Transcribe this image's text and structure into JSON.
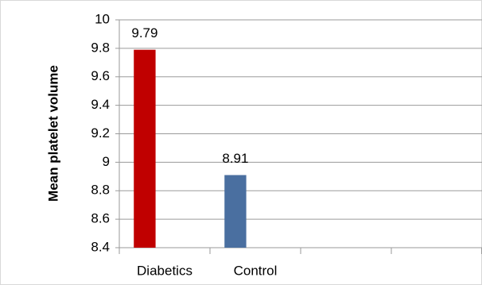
{
  "chart_data": {
    "type": "bar",
    "y_label": "Mean platelet volume",
    "categories": [
      "Diabetics",
      "Control",
      null,
      null
    ],
    "values": [
      9.79,
      8.91,
      null,
      null
    ],
    "colors": [
      "#c00000",
      "#4a6fa0"
    ],
    "ylim": [
      8.4,
      10
    ],
    "yticks": [
      8.4,
      8.6,
      8.8,
      9,
      9.2,
      9.4,
      9.6,
      9.8,
      10
    ],
    "grid": true
  }
}
